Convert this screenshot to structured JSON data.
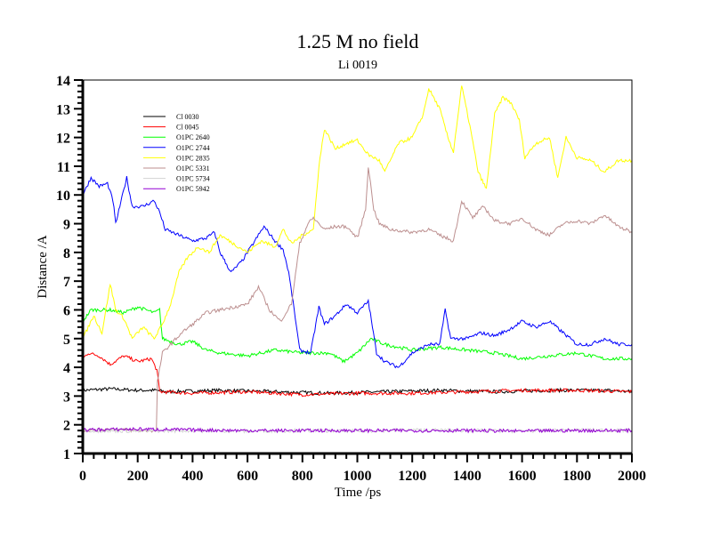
{
  "chart_data": {
    "type": "line",
    "title": "1.25 M no field",
    "subtitle": "Li 0019",
    "xlabel": "Time /ps",
    "ylabel": "Distance /A",
    "xlim": [
      0,
      2000
    ],
    "ylim": [
      1,
      14
    ],
    "xticks": [
      "0",
      "200",
      "400",
      "600",
      "800",
      "1000",
      "1200",
      "1400",
      "1600",
      "1800",
      "2000"
    ],
    "yticks": [
      "1",
      "2",
      "3",
      "4",
      "5",
      "6",
      "7",
      "8",
      "9",
      "10",
      "11",
      "12",
      "13",
      "14"
    ],
    "legend_position": "top-left",
    "series": [
      {
        "name": "Cl 0030",
        "color": "#000000",
        "points": [
          [
            0,
            3.2
          ],
          [
            100,
            3.25
          ],
          [
            200,
            3.2
          ],
          [
            270,
            3.2
          ],
          [
            300,
            3.15
          ],
          [
            500,
            3.2
          ],
          [
            700,
            3.15
          ],
          [
            900,
            3.1
          ],
          [
            1100,
            3.15
          ],
          [
            1300,
            3.2
          ],
          [
            1500,
            3.15
          ],
          [
            1700,
            3.2
          ],
          [
            1900,
            3.2
          ],
          [
            2000,
            3.15
          ]
        ]
      },
      {
        "name": "Cl 0045",
        "color": "#ff0000",
        "points": [
          [
            0,
            4.3
          ],
          [
            20,
            4.5
          ],
          [
            60,
            4.4
          ],
          [
            100,
            4.1
          ],
          [
            150,
            4.4
          ],
          [
            200,
            4.2
          ],
          [
            250,
            4.3
          ],
          [
            270,
            3.9
          ],
          [
            280,
            3.15
          ],
          [
            400,
            3.1
          ],
          [
            600,
            3.15
          ],
          [
            800,
            3.05
          ],
          [
            1000,
            3.1
          ],
          [
            1200,
            3.1
          ],
          [
            1400,
            3.15
          ],
          [
            1600,
            3.2
          ],
          [
            1800,
            3.2
          ],
          [
            2000,
            3.15
          ]
        ]
      },
      {
        "name": "O1PC 2640",
        "color": "#00ff00",
        "points": [
          [
            0,
            5.6
          ],
          [
            30,
            6.0
          ],
          [
            100,
            6.0
          ],
          [
            150,
            5.9
          ],
          [
            200,
            6.1
          ],
          [
            260,
            5.9
          ],
          [
            280,
            6.0
          ],
          [
            290,
            5.0
          ],
          [
            350,
            4.8
          ],
          [
            400,
            4.9
          ],
          [
            450,
            4.6
          ],
          [
            500,
            4.5
          ],
          [
            600,
            4.4
          ],
          [
            700,
            4.6
          ],
          [
            800,
            4.5
          ],
          [
            900,
            4.5
          ],
          [
            950,
            4.2
          ],
          [
            1000,
            4.5
          ],
          [
            1050,
            5.0
          ],
          [
            1100,
            4.8
          ],
          [
            1200,
            4.6
          ],
          [
            1300,
            4.7
          ],
          [
            1400,
            4.6
          ],
          [
            1500,
            4.5
          ],
          [
            1600,
            4.3
          ],
          [
            1700,
            4.4
          ],
          [
            1800,
            4.5
          ],
          [
            1900,
            4.3
          ],
          [
            2000,
            4.3
          ]
        ]
      },
      {
        "name": "O1PC 2744",
        "color": "#0000ff",
        "points": [
          [
            0,
            10.0
          ],
          [
            30,
            10.6
          ],
          [
            60,
            10.3
          ],
          [
            90,
            10.4
          ],
          [
            110,
            9.8
          ],
          [
            120,
            9.0
          ],
          [
            150,
            10.2
          ],
          [
            160,
            10.6
          ],
          [
            180,
            9.6
          ],
          [
            220,
            9.6
          ],
          [
            260,
            9.8
          ],
          [
            280,
            9.4
          ],
          [
            300,
            8.8
          ],
          [
            350,
            8.6
          ],
          [
            400,
            8.4
          ],
          [
            450,
            8.5
          ],
          [
            480,
            8.7
          ],
          [
            500,
            8.0
          ],
          [
            540,
            7.3
          ],
          [
            580,
            7.7
          ],
          [
            620,
            8.3
          ],
          [
            660,
            8.9
          ],
          [
            700,
            8.4
          ],
          [
            730,
            8.1
          ],
          [
            750,
            7.3
          ],
          [
            770,
            6.0
          ],
          [
            790,
            4.6
          ],
          [
            830,
            4.5
          ],
          [
            860,
            6.1
          ],
          [
            880,
            5.5
          ],
          [
            920,
            5.8
          ],
          [
            960,
            6.2
          ],
          [
            1000,
            5.9
          ],
          [
            1040,
            6.3
          ],
          [
            1070,
            4.5
          ],
          [
            1100,
            4.2
          ],
          [
            1150,
            4.0
          ],
          [
            1200,
            4.5
          ],
          [
            1260,
            4.8
          ],
          [
            1300,
            4.8
          ],
          [
            1320,
            6.0
          ],
          [
            1340,
            5.0
          ],
          [
            1400,
            5.0
          ],
          [
            1450,
            5.2
          ],
          [
            1500,
            5.1
          ],
          [
            1550,
            5.3
          ],
          [
            1600,
            5.6
          ],
          [
            1650,
            5.4
          ],
          [
            1700,
            5.6
          ],
          [
            1750,
            5.2
          ],
          [
            1800,
            4.8
          ],
          [
            1850,
            4.8
          ],
          [
            1900,
            5.0
          ],
          [
            1950,
            4.8
          ],
          [
            2000,
            4.8
          ]
        ]
      },
      {
        "name": "O1PC 2835",
        "color": "#ffff00",
        "points": [
          [
            0,
            5.0
          ],
          [
            40,
            5.8
          ],
          [
            70,
            5.2
          ],
          [
            100,
            6.9
          ],
          [
            120,
            6.0
          ],
          [
            150,
            5.7
          ],
          [
            180,
            5.0
          ],
          [
            220,
            5.4
          ],
          [
            260,
            5.0
          ],
          [
            290,
            5.5
          ],
          [
            320,
            6.2
          ],
          [
            350,
            7.3
          ],
          [
            380,
            7.8
          ],
          [
            420,
            8.2
          ],
          [
            460,
            8.0
          ],
          [
            500,
            8.6
          ],
          [
            550,
            8.3
          ],
          [
            600,
            8.0
          ],
          [
            650,
            8.4
          ],
          [
            700,
            8.2
          ],
          [
            730,
            8.8
          ],
          [
            760,
            8.3
          ],
          [
            800,
            8.6
          ],
          [
            840,
            8.8
          ],
          [
            860,
            11.0
          ],
          [
            880,
            12.3
          ],
          [
            920,
            11.6
          ],
          [
            960,
            11.8
          ],
          [
            1000,
            11.9
          ],
          [
            1040,
            11.4
          ],
          [
            1080,
            11.2
          ],
          [
            1100,
            10.8
          ],
          [
            1150,
            11.8
          ],
          [
            1200,
            12.0
          ],
          [
            1240,
            12.8
          ],
          [
            1260,
            13.7
          ],
          [
            1300,
            13.0
          ],
          [
            1330,
            12.0
          ],
          [
            1350,
            11.5
          ],
          [
            1380,
            13.8
          ],
          [
            1410,
            12.4
          ],
          [
            1440,
            10.8
          ],
          [
            1470,
            10.2
          ],
          [
            1500,
            12.8
          ],
          [
            1530,
            13.4
          ],
          [
            1560,
            13.2
          ],
          [
            1590,
            12.6
          ],
          [
            1610,
            11.3
          ],
          [
            1650,
            11.8
          ],
          [
            1700,
            12.0
          ],
          [
            1730,
            10.6
          ],
          [
            1760,
            12.0
          ],
          [
            1800,
            11.3
          ],
          [
            1850,
            11.2
          ],
          [
            1900,
            10.8
          ],
          [
            1950,
            11.2
          ],
          [
            2000,
            11.2
          ]
        ]
      },
      {
        "name": "O1PC 5331",
        "color": "#bc8f8f",
        "points": [
          [
            0,
            1.8
          ],
          [
            100,
            1.85
          ],
          [
            200,
            1.8
          ],
          [
            268,
            1.8
          ],
          [
            272,
            3.5
          ],
          [
            290,
            4.5
          ],
          [
            320,
            4.8
          ],
          [
            360,
            5.2
          ],
          [
            400,
            5.5
          ],
          [
            450,
            5.9
          ],
          [
            500,
            6.0
          ],
          [
            550,
            6.1
          ],
          [
            600,
            6.2
          ],
          [
            640,
            6.8
          ],
          [
            680,
            6.0
          ],
          [
            720,
            5.6
          ],
          [
            760,
            6.2
          ],
          [
            790,
            8.3
          ],
          [
            820,
            9.0
          ],
          [
            840,
            9.2
          ],
          [
            880,
            8.8
          ],
          [
            920,
            8.9
          ],
          [
            960,
            8.9
          ],
          [
            1000,
            8.5
          ],
          [
            1030,
            9.5
          ],
          [
            1040,
            11.0
          ],
          [
            1060,
            9.5
          ],
          [
            1080,
            9.0
          ],
          [
            1120,
            8.8
          ],
          [
            1200,
            8.7
          ],
          [
            1260,
            8.8
          ],
          [
            1300,
            8.6
          ],
          [
            1350,
            8.4
          ],
          [
            1380,
            9.8
          ],
          [
            1420,
            9.2
          ],
          [
            1460,
            9.6
          ],
          [
            1500,
            9.1
          ],
          [
            1560,
            9.0
          ],
          [
            1600,
            9.2
          ],
          [
            1650,
            8.8
          ],
          [
            1700,
            8.6
          ],
          [
            1750,
            9.0
          ],
          [
            1800,
            9.1
          ],
          [
            1850,
            9.0
          ],
          [
            1900,
            9.3
          ],
          [
            1950,
            8.9
          ],
          [
            2000,
            8.7
          ]
        ]
      },
      {
        "name": "O1PC 5734",
        "color": "#d3d3d3",
        "points": [
          [
            0,
            1.8
          ],
          [
            200,
            1.78
          ],
          [
            400,
            1.8
          ],
          [
            600,
            1.78
          ],
          [
            800,
            1.8
          ],
          [
            1000,
            1.78
          ],
          [
            1200,
            1.82
          ],
          [
            1400,
            1.8
          ],
          [
            1600,
            1.78
          ],
          [
            1800,
            1.82
          ],
          [
            2000,
            1.8
          ]
        ]
      },
      {
        "name": "O1PC 5942",
        "color": "#9400d3",
        "points": [
          [
            0,
            1.82
          ],
          [
            200,
            1.85
          ],
          [
            400,
            1.82
          ],
          [
            600,
            1.8
          ],
          [
            800,
            1.8
          ],
          [
            1000,
            1.8
          ],
          [
            1200,
            1.8
          ],
          [
            1400,
            1.8
          ],
          [
            1600,
            1.78
          ],
          [
            1800,
            1.8
          ],
          [
            2000,
            1.8
          ]
        ]
      }
    ]
  }
}
